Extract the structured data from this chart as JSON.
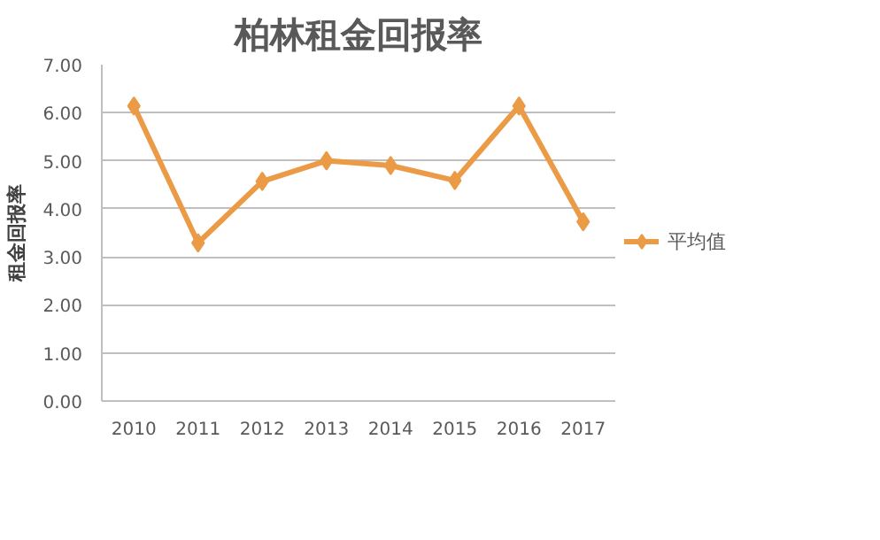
{
  "chart_data": {
    "type": "line",
    "title": "柏林租金回报率",
    "ylabel": "租金回报率",
    "categories": [
      "2010",
      "2011",
      "2012",
      "2013",
      "2014",
      "2015",
      "2016",
      "2017"
    ],
    "series": [
      {
        "name": "平均值",
        "color": "#eb9a46",
        "values": [
          6.14,
          3.29,
          4.57,
          5.0,
          4.9,
          4.59,
          6.14,
          3.73
        ]
      }
    ],
    "ylim": [
      0,
      7
    ],
    "yticks": [
      {
        "value": 0,
        "label": "0.00"
      },
      {
        "value": 1,
        "label": "1.00"
      },
      {
        "value": 2,
        "label": "2.00"
      },
      {
        "value": 3,
        "label": "3.00"
      },
      {
        "value": 4,
        "label": "4.00"
      },
      {
        "value": 5,
        "label": "5.00"
      },
      {
        "value": 6,
        "label": "6.00"
      },
      {
        "value": 7,
        "label": "7.00"
      }
    ],
    "grid": "y",
    "legend": "right",
    "marker": "diamond",
    "line_style": "solid"
  }
}
